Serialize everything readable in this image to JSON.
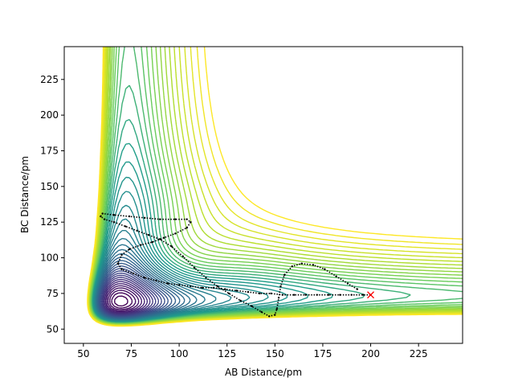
{
  "chart_data": {
    "type": "contour",
    "title": "",
    "xlabel": "AB Distance/pm",
    "ylabel": "BC Distance/pm",
    "xlim": [
      40,
      248
    ],
    "ylim": [
      40,
      248
    ],
    "xticks": [
      50,
      75,
      100,
      125,
      150,
      175,
      200,
      225
    ],
    "yticks": [
      50,
      75,
      100,
      125,
      150,
      175,
      200,
      225
    ],
    "grid": false,
    "contour_levels": 44,
    "colormap": [
      "#440154",
      "#482777",
      "#3f4a8a",
      "#31678e",
      "#26838f",
      "#1f9d8a",
      "#6cce5a",
      "#b6de2b",
      "#fde725"
    ],
    "trajectory": {
      "color": "#000000",
      "points": [
        [
          193,
          78
        ],
        [
          188,
          82
        ],
        [
          182,
          87
        ],
        [
          176,
          92
        ],
        [
          170,
          95
        ],
        [
          164,
          96
        ],
        [
          159,
          94
        ],
        [
          155,
          88
        ],
        [
          153,
          80
        ],
        [
          152,
          72
        ],
        [
          151,
          64
        ],
        [
          150,
          60
        ],
        [
          147,
          59
        ],
        [
          143,
          62
        ],
        [
          138,
          66
        ],
        [
          132,
          70
        ],
        [
          126,
          75
        ],
        [
          120,
          80
        ],
        [
          114,
          86
        ],
        [
          108,
          93
        ],
        [
          102,
          101
        ],
        [
          96,
          108
        ],
        [
          90,
          113
        ],
        [
          84,
          116
        ],
        [
          78,
          119
        ],
        [
          72,
          122
        ],
        [
          66,
          125
        ],
        [
          61,
          127
        ],
        [
          59,
          129
        ],
        [
          60,
          131
        ],
        [
          66,
          130
        ],
        [
          74,
          129
        ],
        [
          82,
          128
        ],
        [
          90,
          127
        ],
        [
          98,
          127
        ],
        [
          104,
          127
        ],
        [
          106,
          125
        ],
        [
          104,
          121
        ],
        [
          98,
          117
        ],
        [
          92,
          114
        ],
        [
          86,
          111
        ],
        [
          80,
          109
        ],
        [
          74,
          106
        ],
        [
          70,
          102
        ],
        [
          68,
          96
        ],
        [
          70,
          92
        ],
        [
          76,
          89
        ],
        [
          82,
          86
        ],
        [
          88,
          84
        ],
        [
          94,
          82
        ],
        [
          100,
          81
        ],
        [
          106,
          80
        ],
        [
          112,
          79
        ],
        [
          118,
          79
        ],
        [
          124,
          78
        ],
        [
          130,
          77
        ],
        [
          136,
          76
        ],
        [
          142,
          75
        ],
        [
          148,
          75
        ],
        [
          154,
          74
        ],
        [
          160,
          74
        ],
        [
          166,
          74
        ],
        [
          172,
          74
        ],
        [
          178,
          74
        ],
        [
          184,
          74
        ],
        [
          190,
          74
        ],
        [
          196,
          74
        ],
        [
          200,
          74
        ]
      ]
    },
    "marker": {
      "x": 200,
      "y": 74,
      "symbol": "x",
      "color": "#ff0000"
    }
  }
}
